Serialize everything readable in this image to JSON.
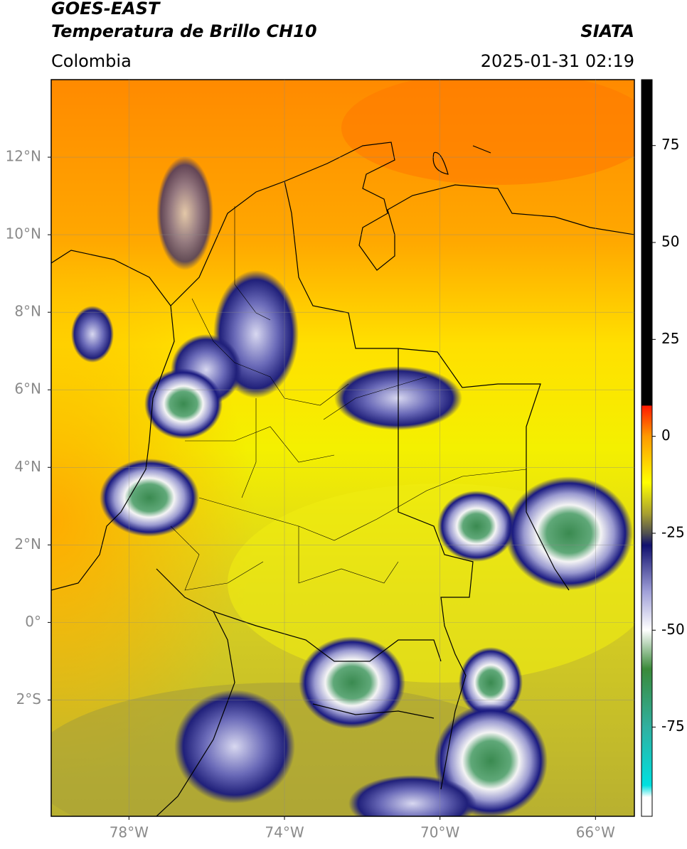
{
  "header": {
    "title": "GOES-EAST",
    "subtitle": "Temperatura de Brillo CH10",
    "source": "SIATA",
    "region": "Colombia",
    "datetime": "2025-01-31 02:19"
  },
  "map": {
    "latlim": [
      -5,
      14
    ],
    "lonlim": [
      -80,
      -65
    ],
    "lat_ticks": [
      {
        "value": 12,
        "label": "12°N"
      },
      {
        "value": 10,
        "label": "10°N"
      },
      {
        "value": 8,
        "label": "8°N"
      },
      {
        "value": 6,
        "label": "6°N"
      },
      {
        "value": 4,
        "label": "4°N"
      },
      {
        "value": 2,
        "label": "2°N"
      },
      {
        "value": 0,
        "label": "0°"
      },
      {
        "value": -2,
        "label": "2°S"
      }
    ],
    "lon_ticks": [
      {
        "value": -78,
        "label": "78°W"
      },
      {
        "value": -74,
        "label": "74°W"
      },
      {
        "value": -70,
        "label": "70°W"
      },
      {
        "value": -66,
        "label": "66°W"
      }
    ],
    "grid": true
  },
  "colorbar": {
    "lim": [
      -98,
      92
    ],
    "ticks": [
      75,
      50,
      25,
      0,
      -25,
      -50,
      -75
    ]
  }
}
